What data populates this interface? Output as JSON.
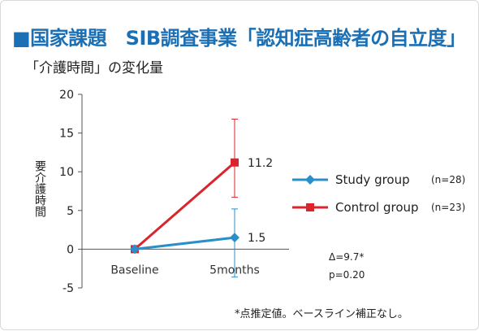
{
  "title": "■国家課題　SIB調査事業「認知症高齢者の自立度」",
  "subtitle": "「介護時間」の変化量",
  "colors": {
    "title": "#1a6fb5",
    "study": "#2a8fc8",
    "control": "#d9252d"
  },
  "chart_data": {
    "type": "line",
    "categories": [
      "Baseline",
      "5months"
    ],
    "ylabel": "要介護時間",
    "ylim": [
      -5,
      20
    ],
    "yticks": [
      "-5",
      "0",
      "5",
      "10",
      "15",
      "20"
    ],
    "grid": false,
    "legend_position": "right",
    "series": [
      {
        "name": "Study group",
        "n_label": "(n=28)",
        "marker": "diamond",
        "values": [
          0,
          1.5
        ],
        "value_labels": [
          "",
          "1.5"
        ],
        "error_high": [
          0,
          5.2
        ],
        "error_low": [
          0,
          -3.6
        ]
      },
      {
        "name": "Control group",
        "n_label": "(n=23)",
        "marker": "square",
        "values": [
          0,
          11.2
        ],
        "value_labels": [
          "",
          "11.2"
        ],
        "error_high": [
          0,
          16.8
        ],
        "error_low": [
          0,
          6.7
        ]
      }
    ]
  },
  "stats": {
    "delta": "Δ=9.7*",
    "p": "p=0.20"
  },
  "footnote": "*点推定値。ベースライン補正なし。"
}
